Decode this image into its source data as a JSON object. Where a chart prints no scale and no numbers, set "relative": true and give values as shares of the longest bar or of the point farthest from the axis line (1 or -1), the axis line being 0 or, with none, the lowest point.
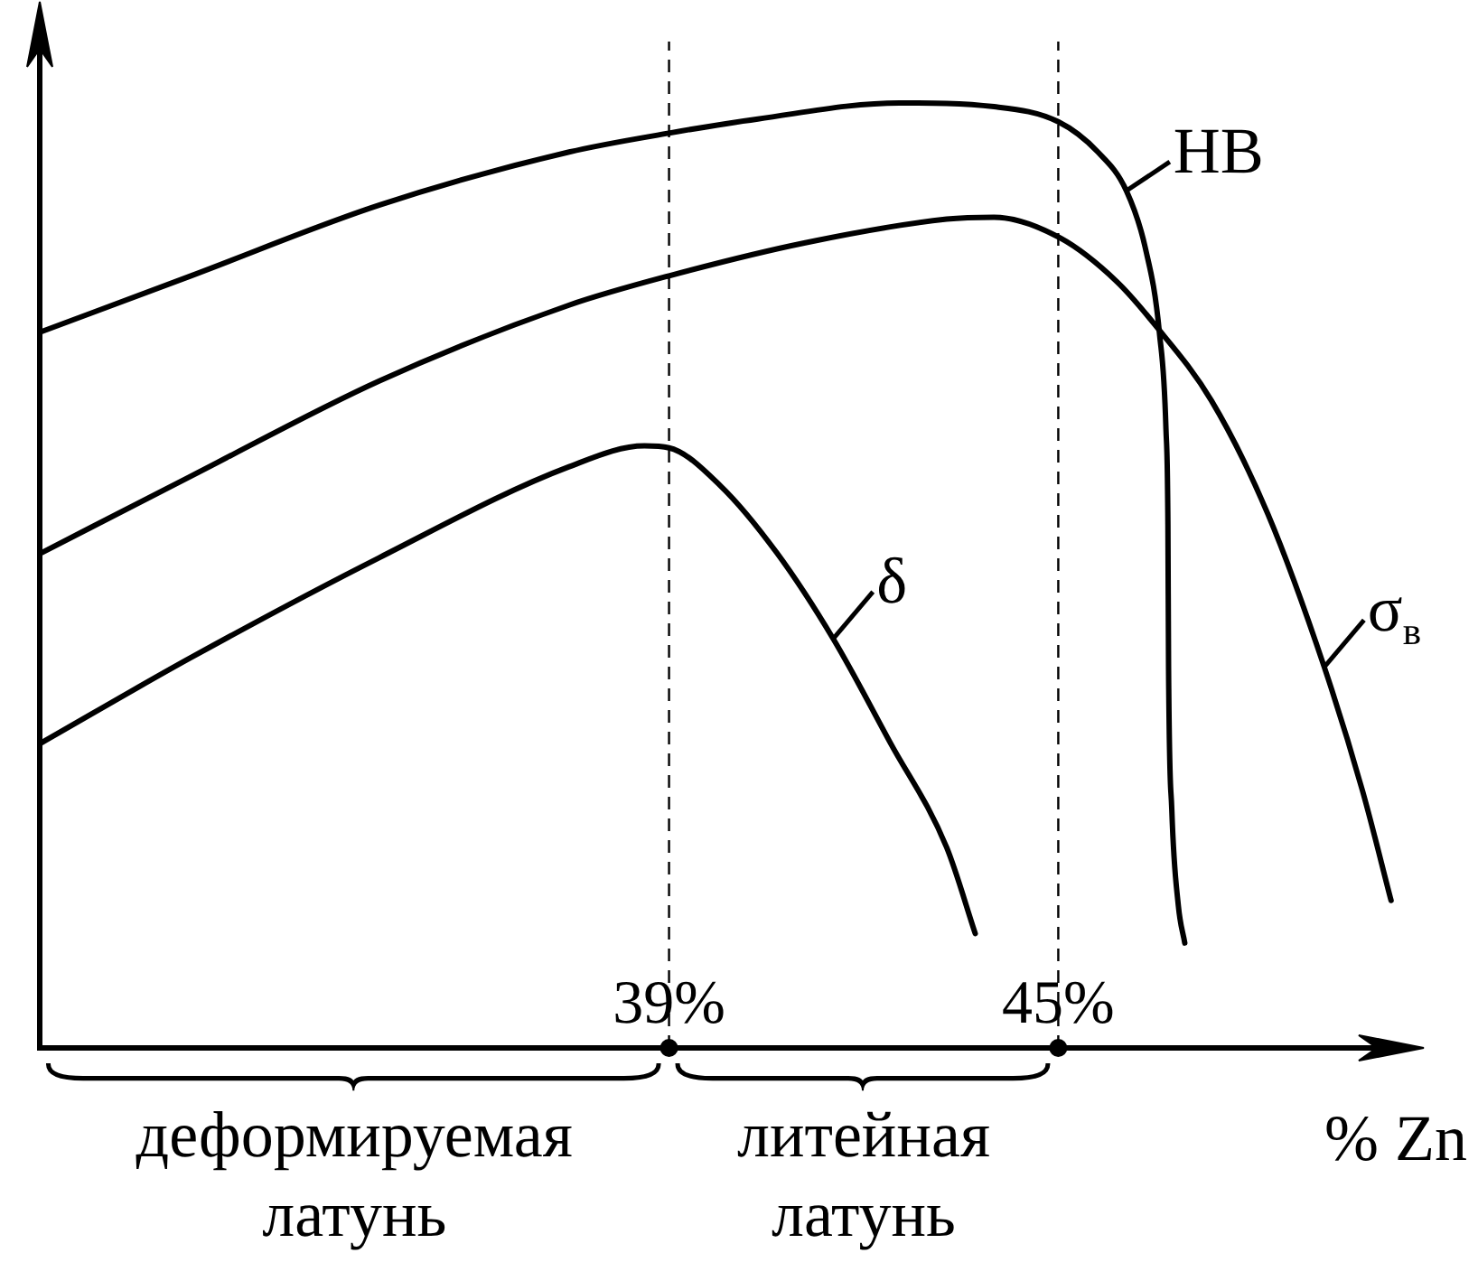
{
  "chart_data": {
    "type": "line",
    "relative": true,
    "xlabel": "% Zn",
    "xlim": [
      29.3,
      50.3
    ],
    "xticks": [
      {
        "value": 39,
        "label": "39%"
      },
      {
        "value": 45,
        "label": "45%"
      }
    ],
    "grid": false,
    "legend": "right",
    "marker": "none",
    "line_style": "solid",
    "series": [
      {
        "name": "HB",
        "color": "#000000",
        "x": [
          29.33,
          31.63,
          34.54,
          37.46,
          39,
          40.37,
          42.55,
          44.01,
          45,
          45.61,
          46.05,
          46.34,
          46.56,
          46.66,
          46.69,
          46.7,
          46.75,
          46.85,
          46.95
        ],
        "values": [
          0.758,
          0.817,
          0.892,
          0.948,
          0.968,
          0.983,
          1.0,
          0.996,
          0.98,
          0.948,
          0.907,
          0.847,
          0.756,
          0.655,
          0.554,
          0.403,
          0.252,
          0.151,
          0.111
        ]
      },
      {
        "name": "σ$_{в}$",
        "color": "#000000",
        "x": [
          29.33,
          31.63,
          34.54,
          37.46,
          39,
          41.1,
          43.28,
          44.01,
          45.03,
          45.9,
          46.48,
          47.36,
          48.23,
          49.1,
          49.69,
          50.13
        ],
        "values": [
          0.524,
          0.605,
          0.706,
          0.786,
          0.817,
          0.852,
          0.877,
          0.879,
          0.857,
          0.811,
          0.766,
          0.685,
          0.565,
          0.403,
          0.272,
          0.156
        ]
      },
      {
        "name": "δ",
        "color": "#000000",
        "x": [
          29.33,
          31.63,
          34.54,
          37.46,
          38.62,
          39,
          39.79,
          40.66,
          41.53,
          42.41,
          43.28,
          43.72
        ],
        "values": [
          0.323,
          0.413,
          0.519,
          0.615,
          0.637,
          0.635,
          0.595,
          0.524,
          0.433,
          0.323,
          0.212,
          0.121
        ]
      }
    ],
    "ref_lines": [
      {
        "axis": "x",
        "value": 39,
        "line_style": "dashed"
      },
      {
        "axis": "x",
        "value": 45,
        "line_style": "dashed"
      }
    ],
    "annotations": [
      "деформируемая латунь",
      "литейная латунь"
    ]
  }
}
